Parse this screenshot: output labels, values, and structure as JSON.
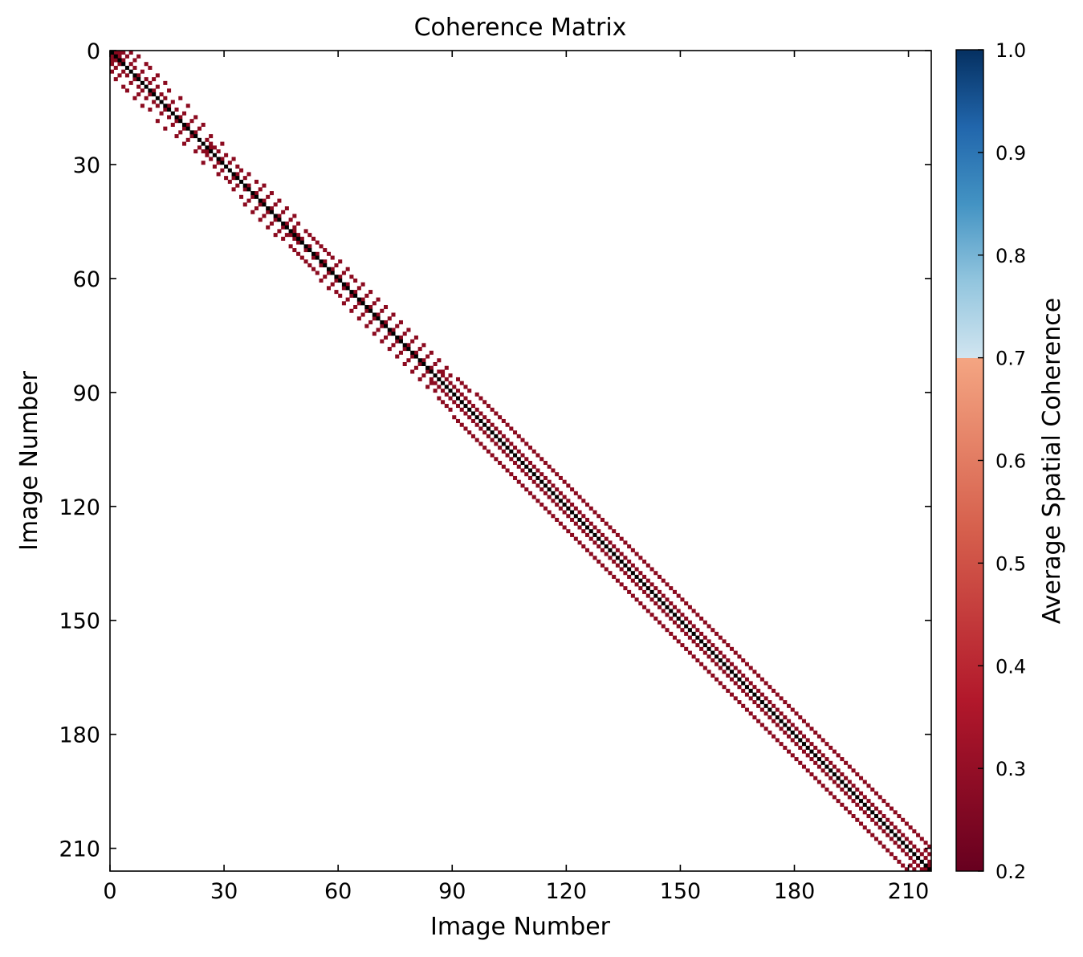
{
  "chart_data": {
    "type": "heatmap",
    "title": "Coherence Matrix",
    "xlabel": "Image Number",
    "ylabel": "Image Number",
    "size": 216,
    "xlim": [
      0,
      216
    ],
    "ylim": [
      216,
      0
    ],
    "xticks": [
      0,
      30,
      60,
      90,
      120,
      150,
      180,
      210
    ],
    "yticks": [
      0,
      30,
      60,
      90,
      120,
      150,
      180,
      210
    ],
    "grid": false,
    "colorbar": {
      "label": "Average Spatial Coherence",
      "min": 0.2,
      "max": 1.0,
      "ticks": [
        "0.2",
        "0.3",
        "0.4",
        "0.5",
        "0.6",
        "0.7",
        "0.8",
        "0.9",
        "1.0"
      ],
      "colormap": "RdBu",
      "split_at": 0.7,
      "stops_low": [
        "#67001f",
        "#b2182b",
        "#d6604d",
        "#f4a582"
      ],
      "stops_high": [
        "#d1e5f0",
        "#92c5de",
        "#4393c3",
        "#2166ac",
        "#053061"
      ]
    },
    "diagonal": {
      "value": 1.0,
      "color": "#000000"
    },
    "pair_value": 0.25,
    "pair_color": "#8b0a1f",
    "pairs": [
      [
        0,
        1
      ],
      [
        0,
        2
      ],
      [
        0,
        3
      ],
      [
        0,
        5
      ],
      [
        1,
        2
      ],
      [
        1,
        4
      ],
      [
        1,
        7
      ],
      [
        2,
        3
      ],
      [
        2,
        6
      ],
      [
        3,
        5
      ],
      [
        3,
        9
      ],
      [
        4,
        6
      ],
      [
        4,
        10
      ],
      [
        5,
        8
      ],
      [
        6,
        7
      ],
      [
        6,
        12
      ],
      [
        7,
        9
      ],
      [
        7,
        11
      ],
      [
        8,
        10
      ],
      [
        8,
        14
      ],
      [
        9,
        12
      ],
      [
        10,
        11
      ],
      [
        10,
        15
      ],
      [
        11,
        13
      ],
      [
        12,
        14
      ],
      [
        12,
        18
      ],
      [
        13,
        16
      ],
      [
        14,
        15
      ],
      [
        14,
        20
      ],
      [
        15,
        17
      ],
      [
        16,
        19
      ],
      [
        17,
        18
      ],
      [
        17,
        22
      ],
      [
        18,
        21
      ],
      [
        19,
        20
      ],
      [
        19,
        24
      ],
      [
        20,
        23
      ],
      [
        21,
        22
      ],
      [
        22,
        26
      ],
      [
        23,
        25
      ],
      [
        24,
        26
      ],
      [
        24,
        29
      ],
      [
        25,
        26
      ],
      [
        25,
        27
      ],
      [
        26,
        28
      ],
      [
        27,
        30
      ],
      [
        28,
        29
      ],
      [
        28,
        32
      ],
      [
        29,
        31
      ],
      [
        30,
        33
      ],
      [
        31,
        34
      ],
      [
        32,
        33
      ],
      [
        32,
        36
      ],
      [
        33,
        35
      ],
      [
        34,
        38
      ],
      [
        35,
        36
      ],
      [
        35,
        40
      ],
      [
        36,
        39
      ],
      [
        37,
        38
      ],
      [
        37,
        42
      ],
      [
        38,
        41
      ],
      [
        39,
        40
      ],
      [
        39,
        44
      ],
      [
        40,
        43
      ],
      [
        41,
        42
      ],
      [
        41,
        46
      ],
      [
        42,
        45
      ],
      [
        43,
        44
      ],
      [
        43,
        48
      ],
      [
        44,
        47
      ],
      [
        45,
        46
      ],
      [
        45,
        49
      ],
      [
        46,
        48
      ],
      [
        47,
        48
      ],
      [
        47,
        51
      ],
      [
        48,
        49
      ],
      [
        48,
        52
      ],
      [
        49,
        50
      ],
      [
        49,
        53
      ],
      [
        50,
        54
      ],
      [
        51,
        52
      ],
      [
        51,
        55
      ],
      [
        52,
        56
      ],
      [
        53,
        54
      ],
      [
        53,
        57
      ],
      [
        54,
        58
      ],
      [
        55,
        56
      ],
      [
        55,
        60
      ],
      [
        56,
        59
      ],
      [
        57,
        58
      ],
      [
        57,
        62
      ],
      [
        58,
        61
      ],
      [
        59,
        60
      ],
      [
        59,
        63
      ],
      [
        60,
        64
      ],
      [
        61,
        62
      ],
      [
        61,
        66
      ],
      [
        62,
        65
      ],
      [
        63,
        64
      ],
      [
        63,
        68
      ],
      [
        64,
        67
      ],
      [
        65,
        66
      ],
      [
        65,
        70
      ],
      [
        66,
        69
      ],
      [
        67,
        68
      ],
      [
        67,
        72
      ],
      [
        68,
        71
      ],
      [
        69,
        70
      ],
      [
        69,
        74
      ],
      [
        70,
        73
      ],
      [
        71,
        72
      ],
      [
        71,
        76
      ],
      [
        72,
        75
      ],
      [
        73,
        74
      ],
      [
        73,
        78
      ],
      [
        74,
        77
      ],
      [
        75,
        76
      ],
      [
        75,
        80
      ],
      [
        76,
        79
      ],
      [
        77,
        78
      ],
      [
        77,
        82
      ],
      [
        78,
        81
      ],
      [
        79,
        80
      ],
      [
        79,
        84
      ],
      [
        80,
        83
      ],
      [
        81,
        82
      ],
      [
        81,
        86
      ],
      [
        82,
        85
      ],
      [
        83,
        84
      ],
      [
        83,
        88
      ],
      [
        84,
        86
      ],
      [
        84,
        87
      ],
      [
        85,
        87
      ],
      [
        85,
        89
      ],
      [
        86,
        88
      ],
      [
        86,
        91
      ],
      [
        87,
        89
      ],
      [
        87,
        92
      ],
      [
        88,
        90
      ],
      [
        88,
        93
      ],
      [
        89,
        91
      ],
      [
        89,
        94
      ],
      [
        90,
        92
      ],
      [
        90,
        96
      ],
      [
        91,
        93
      ],
      [
        91,
        97
      ],
      [
        92,
        94
      ],
      [
        92,
        98
      ],
      [
        93,
        95
      ],
      [
        93,
        99
      ],
      [
        94,
        96
      ],
      [
        94,
        100
      ],
      [
        95,
        97
      ],
      [
        95,
        101
      ],
      [
        96,
        98
      ],
      [
        96,
        102
      ],
      [
        97,
        99
      ],
      [
        97,
        103
      ],
      [
        98,
        100
      ],
      [
        98,
        104
      ],
      [
        99,
        101
      ],
      [
        99,
        105
      ],
      [
        100,
        102
      ],
      [
        100,
        106
      ],
      [
        101,
        103
      ],
      [
        101,
        107
      ],
      [
        102,
        104
      ],
      [
        102,
        108
      ],
      [
        103,
        105
      ],
      [
        103,
        109
      ],
      [
        104,
        106
      ],
      [
        104,
        110
      ],
      [
        105,
        107
      ],
      [
        105,
        111
      ],
      [
        106,
        108
      ],
      [
        106,
        112
      ],
      [
        107,
        109
      ],
      [
        107,
        113
      ],
      [
        108,
        110
      ],
      [
        108,
        114
      ],
      [
        109,
        111
      ],
      [
        109,
        115
      ],
      [
        110,
        112
      ],
      [
        110,
        116
      ],
      [
        111,
        113
      ],
      [
        111,
        117
      ],
      [
        112,
        114
      ],
      [
        112,
        118
      ],
      [
        113,
        115
      ],
      [
        113,
        119
      ],
      [
        114,
        116
      ],
      [
        114,
        120
      ],
      [
        115,
        117
      ],
      [
        115,
        121
      ],
      [
        116,
        118
      ],
      [
        116,
        122
      ],
      [
        117,
        119
      ],
      [
        117,
        123
      ],
      [
        118,
        120
      ],
      [
        118,
        124
      ],
      [
        119,
        121
      ],
      [
        119,
        125
      ],
      [
        120,
        122
      ],
      [
        120,
        126
      ],
      [
        121,
        123
      ],
      [
        121,
        127
      ],
      [
        122,
        124
      ],
      [
        122,
        128
      ],
      [
        123,
        125
      ],
      [
        123,
        129
      ],
      [
        124,
        126
      ],
      [
        124,
        130
      ],
      [
        125,
        127
      ],
      [
        125,
        131
      ],
      [
        126,
        128
      ],
      [
        126,
        132
      ],
      [
        127,
        129
      ],
      [
        127,
        133
      ],
      [
        128,
        130
      ],
      [
        128,
        134
      ],
      [
        129,
        131
      ],
      [
        129,
        135
      ],
      [
        130,
        132
      ],
      [
        130,
        136
      ],
      [
        131,
        133
      ],
      [
        131,
        137
      ],
      [
        132,
        134
      ],
      [
        132,
        138
      ],
      [
        133,
        135
      ],
      [
        133,
        139
      ],
      [
        134,
        136
      ],
      [
        134,
        140
      ],
      [
        135,
        137
      ],
      [
        135,
        141
      ],
      [
        136,
        138
      ],
      [
        136,
        142
      ],
      [
        137,
        139
      ],
      [
        137,
        143
      ],
      [
        138,
        140
      ],
      [
        138,
        144
      ],
      [
        139,
        141
      ],
      [
        139,
        145
      ],
      [
        140,
        142
      ],
      [
        140,
        146
      ],
      [
        141,
        143
      ],
      [
        141,
        147
      ],
      [
        142,
        144
      ],
      [
        142,
        148
      ],
      [
        143,
        145
      ],
      [
        143,
        149
      ],
      [
        144,
        146
      ],
      [
        144,
        150
      ],
      [
        145,
        147
      ],
      [
        145,
        151
      ],
      [
        146,
        148
      ],
      [
        146,
        152
      ],
      [
        147,
        149
      ],
      [
        147,
        153
      ],
      [
        148,
        150
      ],
      [
        148,
        154
      ],
      [
        149,
        151
      ],
      [
        149,
        155
      ],
      [
        150,
        152
      ],
      [
        150,
        156
      ],
      [
        151,
        153
      ],
      [
        151,
        157
      ],
      [
        152,
        154
      ],
      [
        152,
        158
      ],
      [
        153,
        155
      ],
      [
        153,
        159
      ],
      [
        154,
        156
      ],
      [
        154,
        160
      ],
      [
        155,
        157
      ],
      [
        155,
        161
      ],
      [
        156,
        158
      ],
      [
        156,
        162
      ],
      [
        157,
        159
      ],
      [
        157,
        163
      ],
      [
        158,
        160
      ],
      [
        158,
        164
      ],
      [
        159,
        161
      ],
      [
        159,
        165
      ],
      [
        160,
        162
      ],
      [
        160,
        166
      ],
      [
        161,
        163
      ],
      [
        161,
        167
      ],
      [
        162,
        164
      ],
      [
        162,
        168
      ],
      [
        163,
        165
      ],
      [
        163,
        169
      ],
      [
        164,
        166
      ],
      [
        164,
        170
      ],
      [
        165,
        167
      ],
      [
        165,
        171
      ],
      [
        166,
        168
      ],
      [
        166,
        172
      ],
      [
        167,
        169
      ],
      [
        167,
        173
      ],
      [
        168,
        170
      ],
      [
        168,
        174
      ],
      [
        169,
        171
      ],
      [
        169,
        175
      ],
      [
        170,
        172
      ],
      [
        170,
        176
      ],
      [
        171,
        173
      ],
      [
        171,
        177
      ],
      [
        172,
        174
      ],
      [
        172,
        178
      ],
      [
        173,
        175
      ],
      [
        173,
        179
      ],
      [
        174,
        176
      ],
      [
        174,
        180
      ],
      [
        175,
        177
      ],
      [
        175,
        181
      ],
      [
        176,
        178
      ],
      [
        176,
        182
      ],
      [
        177,
        179
      ],
      [
        177,
        183
      ],
      [
        178,
        180
      ],
      [
        178,
        184
      ],
      [
        179,
        181
      ],
      [
        179,
        185
      ],
      [
        180,
        182
      ],
      [
        180,
        186
      ],
      [
        181,
        183
      ],
      [
        181,
        187
      ],
      [
        182,
        184
      ],
      [
        182,
        188
      ],
      [
        183,
        185
      ],
      [
        183,
        189
      ],
      [
        184,
        186
      ],
      [
        184,
        190
      ],
      [
        185,
        187
      ],
      [
        185,
        191
      ],
      [
        186,
        188
      ],
      [
        186,
        192
      ],
      [
        187,
        189
      ],
      [
        187,
        193
      ],
      [
        188,
        190
      ],
      [
        188,
        194
      ],
      [
        189,
        191
      ],
      [
        189,
        195
      ],
      [
        190,
        192
      ],
      [
        190,
        196
      ],
      [
        191,
        193
      ],
      [
        191,
        197
      ],
      [
        192,
        194
      ],
      [
        192,
        198
      ],
      [
        193,
        195
      ],
      [
        193,
        199
      ],
      [
        194,
        196
      ],
      [
        194,
        200
      ],
      [
        195,
        197
      ],
      [
        195,
        201
      ],
      [
        196,
        198
      ],
      [
        196,
        202
      ],
      [
        197,
        199
      ],
      [
        197,
        203
      ],
      [
        198,
        200
      ],
      [
        198,
        204
      ],
      [
        199,
        201
      ],
      [
        199,
        205
      ],
      [
        200,
        202
      ],
      [
        200,
        206
      ],
      [
        201,
        203
      ],
      [
        201,
        207
      ],
      [
        202,
        204
      ],
      [
        202,
        208
      ],
      [
        203,
        205
      ],
      [
        203,
        209
      ],
      [
        204,
        206
      ],
      [
        204,
        210
      ],
      [
        205,
        207
      ],
      [
        205,
        211
      ],
      [
        206,
        208
      ],
      [
        206,
        212
      ],
      [
        207,
        209
      ],
      [
        207,
        213
      ],
      [
        208,
        210
      ],
      [
        208,
        214
      ],
      [
        209,
        211
      ],
      [
        209,
        215
      ],
      [
        210,
        212
      ],
      [
        210,
        214
      ],
      [
        211,
        213
      ],
      [
        211,
        215
      ],
      [
        212,
        214
      ],
      [
        213,
        215
      ],
      [
        214,
        215
      ]
    ]
  }
}
